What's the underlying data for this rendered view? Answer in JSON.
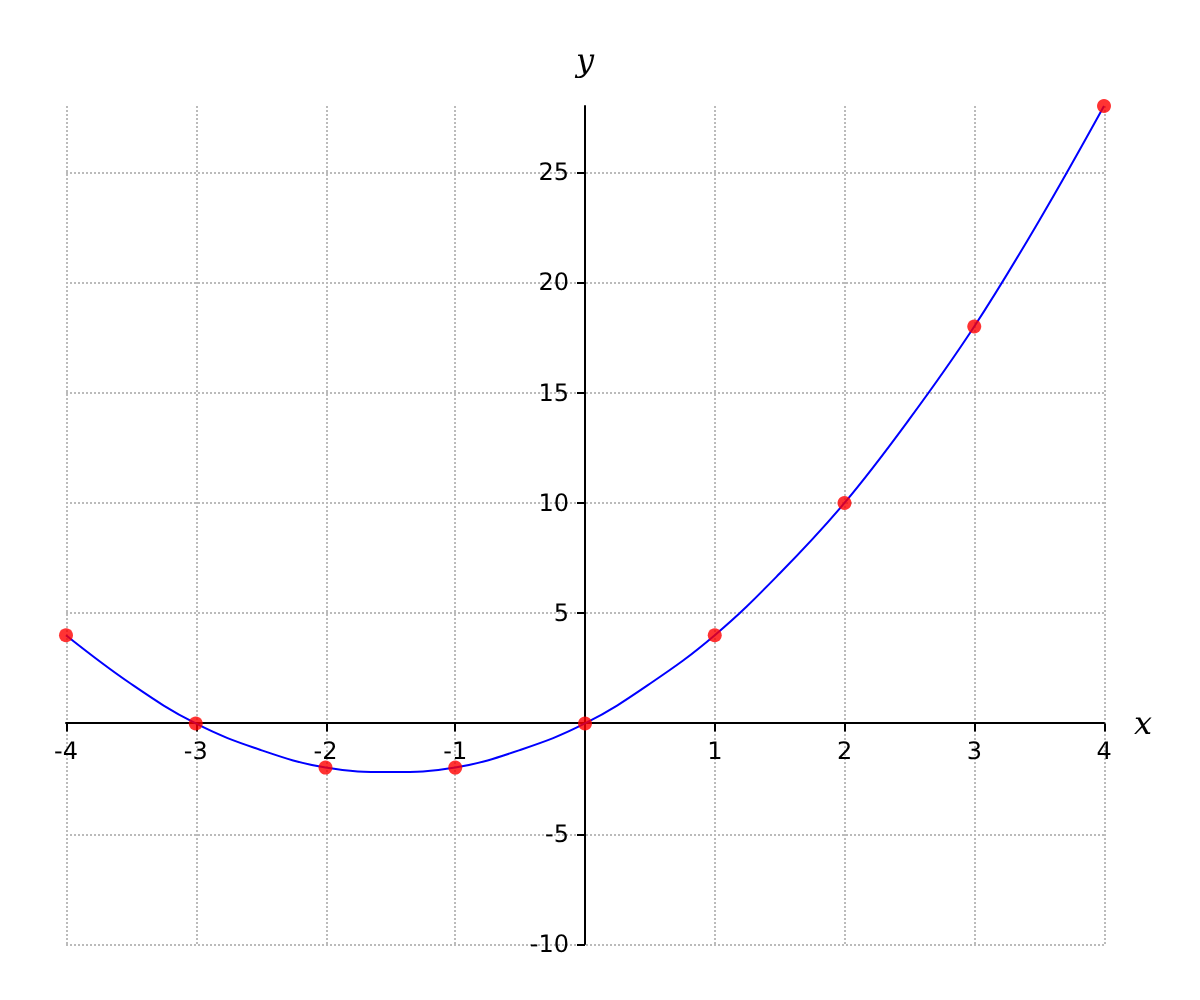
{
  "chart_data": {
    "type": "line",
    "xlabel": "x",
    "ylabel": "y",
    "xlim": [
      -4,
      4
    ],
    "ylim": [
      -10,
      28
    ],
    "xticks": [
      -4,
      -3,
      -2,
      -1,
      1,
      2,
      3,
      4
    ],
    "yticks": [
      -10,
      -5,
      5,
      10,
      15,
      20,
      25
    ],
    "grid": true,
    "series": [
      {
        "type": "line",
        "color": "#0000ff",
        "marker": "none",
        "x": [
          -4,
          -3.5,
          -3,
          -2.5,
          -2,
          -1.5,
          -1,
          -0.5,
          0,
          0.5,
          1,
          1.5,
          2,
          2.5,
          3,
          3.5,
          4
        ],
        "values": [
          4,
          1.8,
          0,
          -1.2,
          -2,
          -2.2,
          -2,
          -1.2,
          0,
          1.8,
          4,
          6.8,
          10,
          13.8,
          18,
          22.8,
          28
        ]
      },
      {
        "type": "scatter",
        "color": "#ff0000",
        "marker": "circle",
        "x": [
          -4,
          -3,
          -2,
          -1,
          0,
          1,
          2,
          3,
          4
        ],
        "values": [
          4,
          0,
          -2,
          -2,
          0,
          4,
          10,
          18,
          28
        ]
      }
    ]
  }
}
